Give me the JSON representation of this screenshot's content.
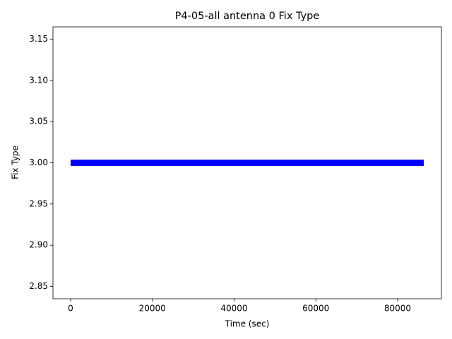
{
  "chart_data": {
    "type": "line",
    "title": "P4-05-all antenna 0 Fix Type",
    "x_label": "Time (sec)",
    "y_label": "Fix Type",
    "series": [
      {
        "color": "#0000ff",
        "x": [
          0,
          86400
        ],
        "values": [
          3,
          3
        ]
      }
    ],
    "xlim": [
      -4320,
      90720
    ],
    "xticks": [
      0,
      20000,
      40000,
      60000,
      80000
    ],
    "ylim": [
      2.835,
      3.165
    ],
    "yticks": [
      2.85,
      {
        "value": 2.9,
        "label": "2.90"
      },
      2.95,
      {
        "value": 3,
        "label": "3.00"
      },
      3.05,
      {
        "value": 3.1,
        "label": "3.10"
      },
      3.15
    ]
  }
}
